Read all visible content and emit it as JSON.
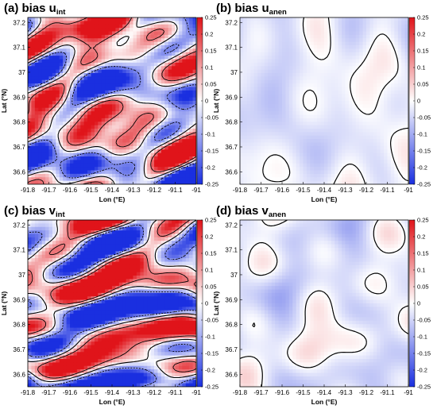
{
  "chart_data": [
    {
      "type": "heatmap",
      "label": "(a) bias u",
      "sub": "int",
      "variant": "int",
      "xlabel": "Lon (°E)",
      "ylabel": "Lat (°N)",
      "xticks": [
        "-91.8",
        "-91.7",
        "-91.6",
        "-91.5",
        "-91.4",
        "-91.3",
        "-91.2",
        "-91.1",
        "-91"
      ],
      "yticks": [
        "36.6",
        "36.7",
        "36.8",
        "36.9",
        "37",
        "37.1",
        "37.2"
      ],
      "xlim": [
        -91.8,
        -91.0
      ],
      "ylim": [
        36.55,
        37.22
      ],
      "colorbar_ticks": [
        "0.25",
        "0.2",
        "0.15",
        "0.1",
        "0.05",
        "0",
        "-0.05",
        "-0.1",
        "-0.15",
        "-0.2",
        "-0.25"
      ],
      "clim": [
        -0.25,
        0.25
      ],
      "colormap": [
        "#1a2fe0",
        "#ffffff",
        "#e0141a"
      ]
    },
    {
      "type": "heatmap",
      "label": "(b) bias u",
      "sub": "anen",
      "variant": "anen",
      "xlabel": "Lon (°E)",
      "ylabel": "Lat (°N)",
      "xticks": [
        "-91.8",
        "-91.7",
        "-91.6",
        "-91.5",
        "-91.4",
        "-91.3",
        "-91.2",
        "-91.1",
        "-91"
      ],
      "yticks": [
        "36.6",
        "36.7",
        "36.8",
        "36.9",
        "37",
        "37.1",
        "37.2"
      ],
      "xlim": [
        -91.8,
        -91.0
      ],
      "ylim": [
        36.55,
        37.22
      ],
      "colorbar_ticks": [
        "0.25",
        "0.2",
        "0.15",
        "0.1",
        "0.05",
        "0",
        "-0.05",
        "-0.1",
        "-0.15",
        "-0.2",
        "-0.25"
      ],
      "clim": [
        -0.25,
        0.25
      ],
      "colormap": [
        "#1a2fe0",
        "#ffffff",
        "#e0141a"
      ]
    },
    {
      "type": "heatmap",
      "label": "(c) bias v",
      "sub": "int",
      "variant": "int",
      "xlabel": "Lon (°E)",
      "ylabel": "Lat (°N)",
      "xticks": [
        "-91.8",
        "-91.7",
        "-91.6",
        "-91.5",
        "-91.4",
        "-91.3",
        "-91.2",
        "-91.1",
        "-91"
      ],
      "yticks": [
        "36.6",
        "36.7",
        "36.8",
        "36.9",
        "37",
        "37.1",
        "37.2"
      ],
      "xlim": [
        -91.8,
        -91.0
      ],
      "ylim": [
        36.55,
        37.22
      ],
      "colorbar_ticks": [
        "0.25",
        "0.2",
        "0.15",
        "0.1",
        "0.05",
        "0",
        "-0.05",
        "-0.1",
        "-0.15",
        "-0.2",
        "-0.25"
      ],
      "clim": [
        -0.25,
        0.25
      ],
      "colormap": [
        "#1a2fe0",
        "#ffffff",
        "#e0141a"
      ]
    },
    {
      "type": "heatmap",
      "label": "(d) bias v",
      "sub": "anen",
      "variant": "anen",
      "xlabel": "Lon (°E)",
      "ylabel": "Lat (°N)",
      "xticks": [
        "-91.8",
        "-91.7",
        "-91.6",
        "-91.5",
        "-91.4",
        "-91.3",
        "-91.2",
        "-91.1",
        "-91"
      ],
      "yticks": [
        "36.6",
        "36.7",
        "36.8",
        "36.9",
        "37",
        "37.1",
        "37.2"
      ],
      "xlim": [
        -91.8,
        -91.0
      ],
      "ylim": [
        36.55,
        37.22
      ],
      "colorbar_ticks": [
        "0.25",
        "0.2",
        "0.15",
        "0.1",
        "0.05",
        "0",
        "-0.05",
        "-0.1",
        "-0.15",
        "-0.2",
        "-0.25"
      ],
      "clim": [
        -0.25,
        0.25
      ],
      "colormap": [
        "#1a2fe0",
        "#ffffff",
        "#e0141a"
      ]
    }
  ]
}
